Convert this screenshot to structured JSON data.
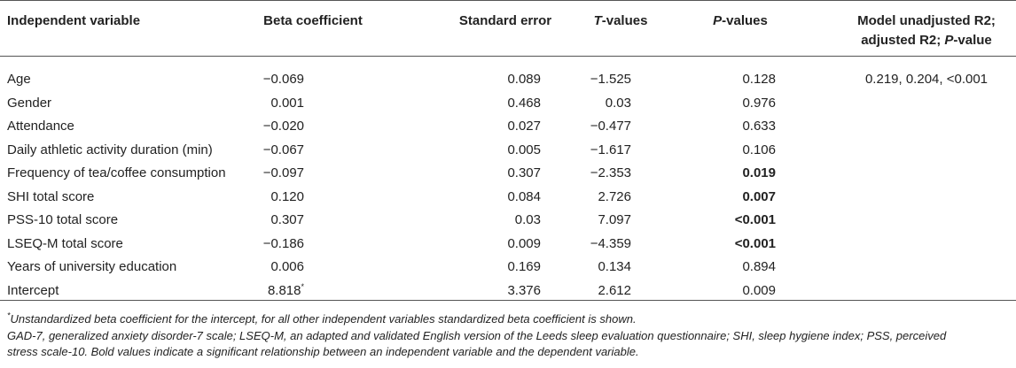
{
  "headers": {
    "variable": "Independent variable",
    "beta": "Beta coefficient",
    "se": "Standard error",
    "t_italic": "T",
    "t_rest": "-values",
    "p_italic": "P",
    "p_rest": "-values",
    "model_line1": "Model unadjusted R2;",
    "model_line2_prefix": "adjusted R2; ",
    "model_line2_italic": "P",
    "model_line2_suffix": "-value"
  },
  "model_value": "0.219, 0.204, <0.001",
  "rows": [
    {
      "variable": "Age",
      "beta": "−0.069",
      "beta_sup": "",
      "se": "0.089",
      "t": "−1.525",
      "p": "0.128",
      "p_bold": false
    },
    {
      "variable": "Gender",
      "beta": "0.001",
      "beta_sup": "",
      "se": "0.468",
      "t": "0.03",
      "p": "0.976",
      "p_bold": false
    },
    {
      "variable": "Attendance",
      "beta": "−0.020",
      "beta_sup": "",
      "se": "0.027",
      "t": "−0.477",
      "p": "0.633",
      "p_bold": false
    },
    {
      "variable": "Daily athletic activity duration (min)",
      "beta": "−0.067",
      "beta_sup": "",
      "se": "0.005",
      "t": "−1.617",
      "p": "0.106",
      "p_bold": false
    },
    {
      "variable": "Frequency of tea/coffee consumption",
      "beta": "−0.097",
      "beta_sup": "",
      "se": "0.307",
      "t": "−2.353",
      "p": "0.019",
      "p_bold": true
    },
    {
      "variable": "SHI total score",
      "beta": "0.120",
      "beta_sup": "",
      "se": "0.084",
      "t": "2.726",
      "p": "0.007",
      "p_bold": true
    },
    {
      "variable": "PSS-10 total score",
      "beta": "0.307",
      "beta_sup": "",
      "se": "0.03",
      "t": "7.097",
      "p": "<0.001",
      "p_bold": true
    },
    {
      "variable": "LSEQ-M total score",
      "beta": "−0.186",
      "beta_sup": "",
      "se": "0.009",
      "t": "−4.359",
      "p": "<0.001",
      "p_bold": true
    },
    {
      "variable": "Years of university education",
      "beta": "0.006",
      "beta_sup": "",
      "se": "0.169",
      "t": "0.134",
      "p": "0.894",
      "p_bold": false
    },
    {
      "variable": "Intercept",
      "beta": "8.818",
      "beta_sup": "*",
      "se": "3.376",
      "t": "2.612",
      "p": "0.009",
      "p_bold": false
    }
  ],
  "footnotes": {
    "note1_sup": "*",
    "note1": "Unstandardized beta coefficient for the intercept, for all other independent variables standardized beta coefficient is shown.",
    "note2_line1": "GAD-7, generalized anxiety disorder-7 scale; LSEQ-M, an adapted and validated English version of the Leeds sleep evaluation questionnaire; SHI, sleep hygiene index; PSS, perceived",
    "note2_line2": "stress scale-10. Bold values indicate a significant relationship between an independent variable and the dependent variable."
  }
}
